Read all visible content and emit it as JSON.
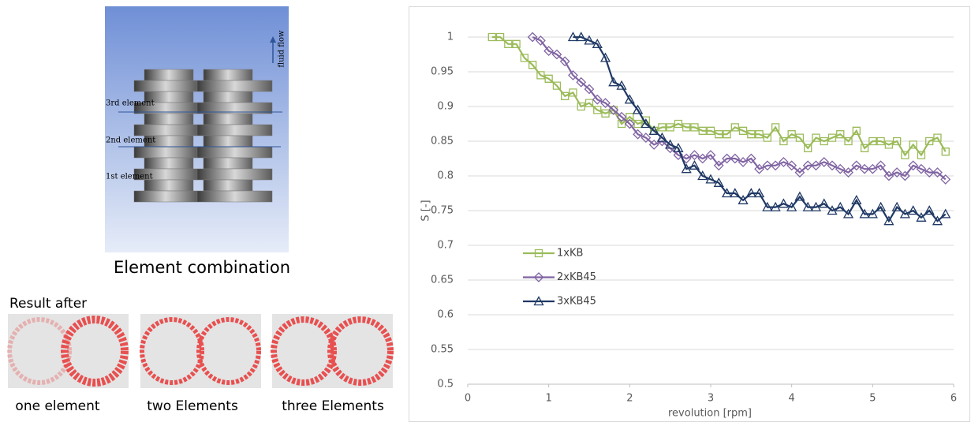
{
  "figure": {
    "flow_label": "fluid flow",
    "element_labels": [
      "3rd element",
      "2nd element",
      "1st element"
    ],
    "combination_caption": "Element combination",
    "result_caption": "Result after",
    "result_labels": [
      "one element",
      "two Elements",
      "three Elements"
    ]
  },
  "chart_data": {
    "type": "line",
    "x_label": "revolution [rpm]",
    "y_label": "S [-]",
    "xlim": [
      0,
      6
    ],
    "xticks": [
      0,
      1,
      2,
      3,
      4,
      5,
      6
    ],
    "ylim": [
      0.5,
      1
    ],
    "yticks": [
      0.5,
      0.55,
      0.6,
      0.65,
      0.7,
      0.75,
      0.8,
      0.85,
      0.9,
      0.95,
      1
    ],
    "grid": true,
    "legend_position": "center left",
    "x": [
      0.3,
      0.4,
      0.5,
      0.6,
      0.7,
      0.8,
      0.9,
      1.0,
      1.1,
      1.2,
      1.3,
      1.4,
      1.5,
      1.6,
      1.7,
      1.8,
      1.9,
      2.0,
      2.1,
      2.2,
      2.3,
      2.4,
      2.5,
      2.6,
      2.7,
      2.8,
      2.9,
      3.0,
      3.1,
      3.2,
      3.3,
      3.4,
      3.5,
      3.6,
      3.7,
      3.8,
      3.9,
      4.0,
      4.1,
      4.2,
      4.3,
      4.4,
      4.5,
      4.6,
      4.7,
      4.8,
      4.9,
      5.0,
      5.1,
      5.2,
      5.3,
      5.4,
      5.5,
      5.6,
      5.7,
      5.8,
      5.9
    ],
    "series": [
      {
        "name": "1xKB",
        "color": "#9bbb59",
        "marker": "square",
        "values": [
          1.0,
          1.0,
          0.99,
          0.99,
          0.97,
          0.96,
          0.945,
          0.94,
          0.93,
          0.915,
          0.92,
          0.9,
          0.905,
          0.895,
          0.89,
          0.895,
          0.875,
          0.885,
          0.875,
          0.88,
          0.865,
          0.87,
          0.87,
          0.875,
          0.87,
          0.87,
          0.865,
          0.865,
          0.86,
          0.86,
          0.87,
          0.865,
          0.86,
          0.86,
          0.855,
          0.87,
          0.85,
          0.86,
          0.855,
          0.84,
          0.855,
          0.85,
          0.855,
          0.86,
          0.85,
          0.865,
          0.84,
          0.85,
          0.85,
          0.845,
          0.85,
          0.83,
          0.845,
          0.83,
          0.85,
          0.855,
          0.835
        ]
      },
      {
        "name": "2xKB45",
        "color": "#8064a2",
        "marker": "diamond",
        "values": [
          null,
          null,
          null,
          null,
          null,
          1.0,
          0.995,
          0.98,
          0.975,
          0.965,
          0.945,
          0.935,
          0.925,
          0.91,
          0.905,
          0.895,
          0.885,
          0.875,
          0.86,
          0.855,
          0.845,
          0.85,
          0.84,
          0.83,
          0.825,
          0.83,
          0.825,
          0.83,
          0.815,
          0.825,
          0.825,
          0.82,
          0.825,
          0.81,
          0.815,
          0.815,
          0.82,
          0.815,
          0.805,
          0.815,
          0.815,
          0.82,
          0.815,
          0.81,
          0.805,
          0.815,
          0.81,
          0.81,
          0.815,
          0.8,
          0.805,
          0.8,
          0.815,
          0.81,
          0.805,
          0.805,
          0.795
        ]
      },
      {
        "name": "3xKB45",
        "color": "#1f3864",
        "marker": "triangle",
        "values": [
          null,
          null,
          null,
          null,
          null,
          null,
          null,
          null,
          null,
          null,
          1.0,
          1.0,
          0.995,
          0.99,
          0.97,
          0.935,
          0.93,
          0.91,
          0.895,
          0.875,
          0.865,
          0.855,
          0.845,
          0.84,
          0.81,
          0.815,
          0.8,
          0.795,
          0.79,
          0.775,
          0.775,
          0.765,
          0.775,
          0.775,
          0.755,
          0.755,
          0.76,
          0.755,
          0.77,
          0.755,
          0.755,
          0.76,
          0.75,
          0.755,
          0.745,
          0.765,
          0.745,
          0.745,
          0.755,
          0.735,
          0.755,
          0.745,
          0.75,
          0.74,
          0.75,
          0.735,
          0.745
        ]
      }
    ]
  }
}
